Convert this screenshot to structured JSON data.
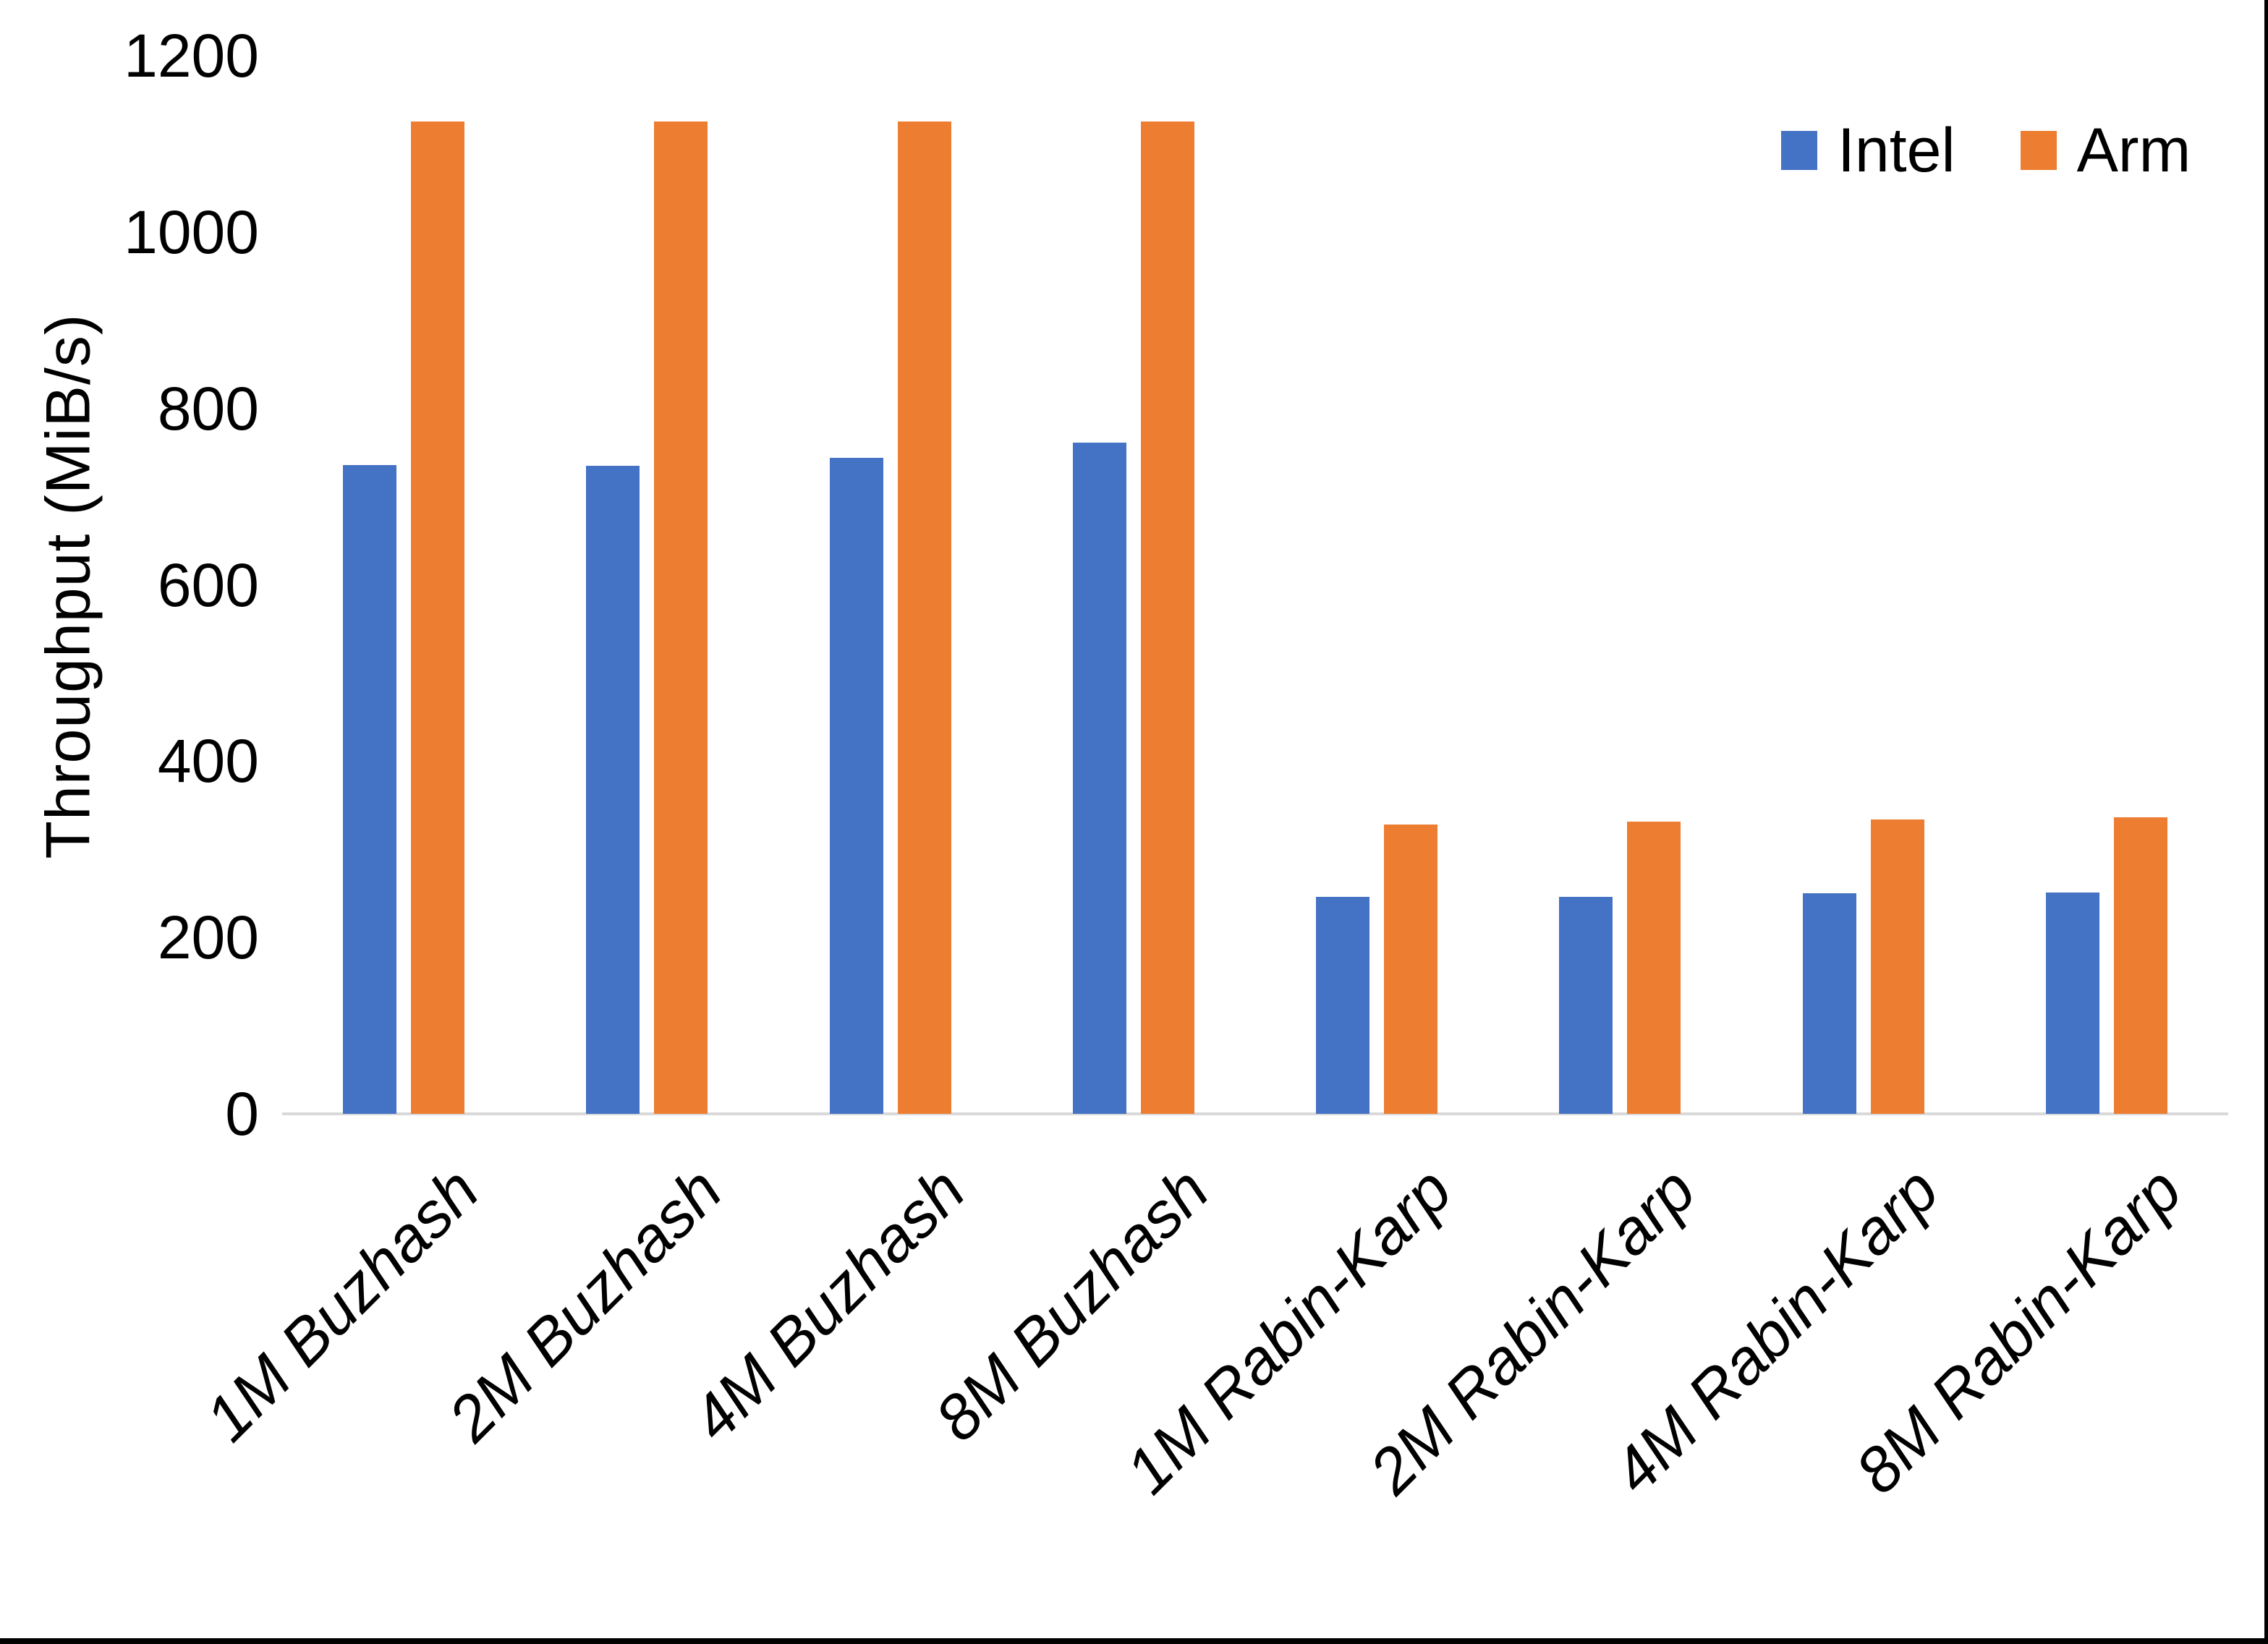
{
  "chart_data": {
    "type": "bar",
    "title": "",
    "xlabel": "",
    "ylabel": "Throughput (MiB/s)",
    "categories": [
      "1M Buzhash",
      "2M Buzhash",
      "4M Buzhash",
      "8M Buzhash",
      "1M Rabin-Karp",
      "2M Rabin-Karp",
      "4M Rabin-Karp",
      "8M Rabin-Karp"
    ],
    "series": [
      {
        "name": "Intel",
        "color": "#4472C4",
        "values": [
          736,
          735,
          744,
          761,
          246,
          246,
          250,
          251
        ]
      },
      {
        "name": "Arm",
        "color": "#ED7D31",
        "values": [
          1125,
          1125,
          1125,
          1125,
          328,
          331,
          334,
          336
        ]
      }
    ],
    "ylim": [
      0,
      1200
    ],
    "yticks": [
      0,
      200,
      400,
      600,
      800,
      1000,
      1200
    ],
    "grid": false,
    "legend_position": "top-right",
    "axis_line_color": "#D9D9D9",
    "background": "#FFFFFF",
    "page_border_color": "#000000"
  }
}
